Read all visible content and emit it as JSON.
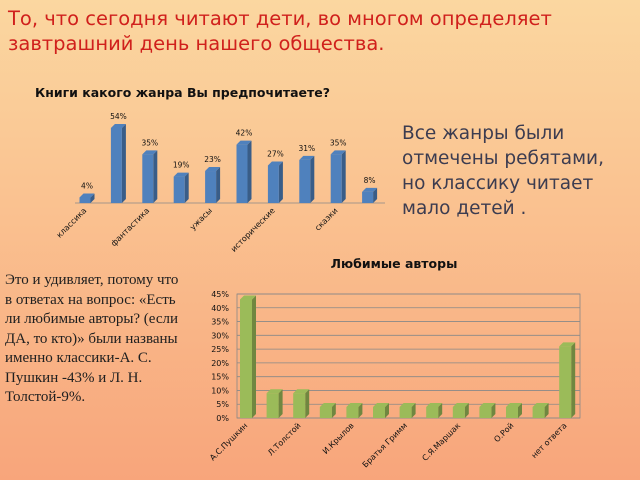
{
  "heading": "То, что сегодня читают  дети, во многом определяет завтрашний день нашего общества.",
  "side_note": "Все  жанры были отмечены ребятами, но классику читает мало детей .",
  "left_note": "Это   и удивляет, потому что в  ответах на вопрос: «Есть ли любимые авторы? (если ДА,  то кто)» были названы именно классики-А. С. Пушкин -43% и Л. Н. Толстой-9%.",
  "chart_data": [
    {
      "type": "bar",
      "title": "Книги какого жанра Вы предпочитаете?",
      "categories": [
        "классика",
        null,
        "фантастика",
        null,
        "ужасы",
        null,
        "исторические",
        null,
        "сказки",
        null
      ],
      "values": [
        4,
        54,
        35,
        19,
        23,
        42,
        27,
        31,
        35,
        8
      ],
      "value_labels": [
        "4%",
        "54%",
        "35%",
        "19%",
        "23%",
        "42%",
        "27%",
        "31%",
        "35%",
        "8%"
      ],
      "color": "#4f81bd"
    },
    {
      "type": "bar",
      "title": "Любимые авторы",
      "categories": [
        "А.С.Пушкин",
        null,
        "Л.Толстой",
        null,
        "И.Крылов",
        null,
        "Братья Гримм",
        null,
        "С.Я.Маршак",
        null,
        "О.Рой",
        null,
        "нет ответа"
      ],
      "values": [
        43,
        9,
        9,
        4,
        4,
        4,
        4,
        4,
        4,
        4,
        4,
        4,
        26
      ],
      "color": "#9bbb59",
      "ylim": [
        0,
        45
      ],
      "yticks": [
        {
          "value": 0,
          "label": "0%"
        },
        {
          "value": 5,
          "label": "5%"
        },
        {
          "value": 10,
          "label": "10%"
        },
        {
          "value": 15,
          "label": "15%"
        },
        {
          "value": 20,
          "label": "20%"
        },
        {
          "value": 25,
          "label": "25%"
        },
        {
          "value": 30,
          "label": "30%"
        },
        {
          "value": 35,
          "label": "35%"
        },
        {
          "value": 40,
          "label": "40%"
        },
        {
          "value": 45,
          "label": "45%"
        }
      ],
      "grid": true
    }
  ]
}
